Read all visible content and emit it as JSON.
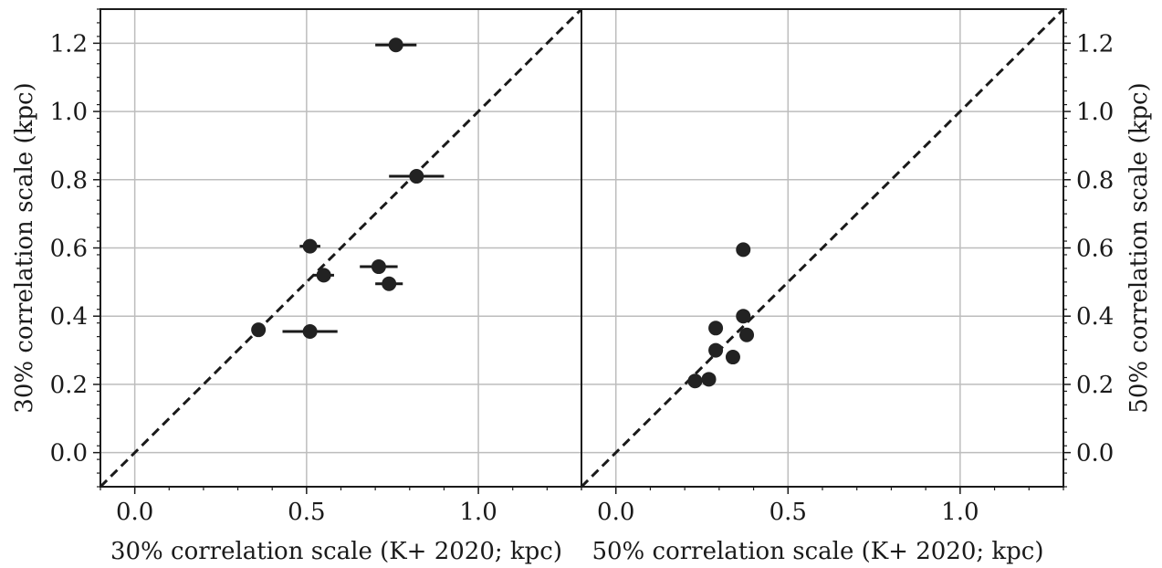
{
  "chart_data": [
    {
      "type": "scatter",
      "title": "",
      "xlabel": "30% correlation scale (K+ 2020; kpc)",
      "ylabel": "30% correlation scale (kpc)",
      "xlim": [
        -0.1,
        1.3
      ],
      "ylim": [
        -0.1,
        1.3
      ],
      "xticks": [
        "0.0",
        "0.5",
        "1.0"
      ],
      "yticks": [
        "0.0",
        "0.2",
        "0.4",
        "0.6",
        "0.8",
        "1.0",
        "1.2"
      ],
      "grid": true,
      "reference_line": "y = x (dashed)",
      "y_axis_side": "left",
      "points": [
        {
          "x": 0.76,
          "y": 1.195,
          "xerr": 0.06
        },
        {
          "x": 0.82,
          "y": 0.81,
          "xerr": 0.08
        },
        {
          "x": 0.51,
          "y": 0.605,
          "xerr": 0.03
        },
        {
          "x": 0.55,
          "y": 0.52,
          "xerr": 0.03
        },
        {
          "x": 0.71,
          "y": 0.545,
          "xerr": 0.055
        },
        {
          "x": 0.74,
          "y": 0.495,
          "xerr": 0.04
        },
        {
          "x": 0.36,
          "y": 0.36,
          "xerr": 0.0
        },
        {
          "x": 0.51,
          "y": 0.355,
          "xerr": 0.08
        }
      ]
    },
    {
      "type": "scatter",
      "title": "",
      "xlabel": "50% correlation scale (K+ 2020; kpc)",
      "ylabel": "50% correlation scale (kpc)",
      "xlim": [
        -0.1,
        1.3
      ],
      "ylim": [
        -0.1,
        1.3
      ],
      "xticks": [
        "0.0",
        "0.5",
        "1.0"
      ],
      "yticks": [
        "0.0",
        "0.2",
        "0.4",
        "0.6",
        "0.8",
        "1.0",
        "1.2"
      ],
      "grid": true,
      "reference_line": "y = x (dashed)",
      "y_axis_side": "right",
      "points": [
        {
          "x": 0.37,
          "y": 0.595,
          "xerr": 0.0
        },
        {
          "x": 0.37,
          "y": 0.4,
          "xerr": 0.0
        },
        {
          "x": 0.29,
          "y": 0.365,
          "xerr": 0.0
        },
        {
          "x": 0.38,
          "y": 0.345,
          "xerr": 0.0
        },
        {
          "x": 0.29,
          "y": 0.3,
          "xerr": 0.0
        },
        {
          "x": 0.34,
          "y": 0.28,
          "xerr": 0.0
        },
        {
          "x": 0.23,
          "y": 0.21,
          "xerr": 0.0
        },
        {
          "x": 0.27,
          "y": 0.215,
          "xerr": 0.0
        }
      ]
    }
  ]
}
